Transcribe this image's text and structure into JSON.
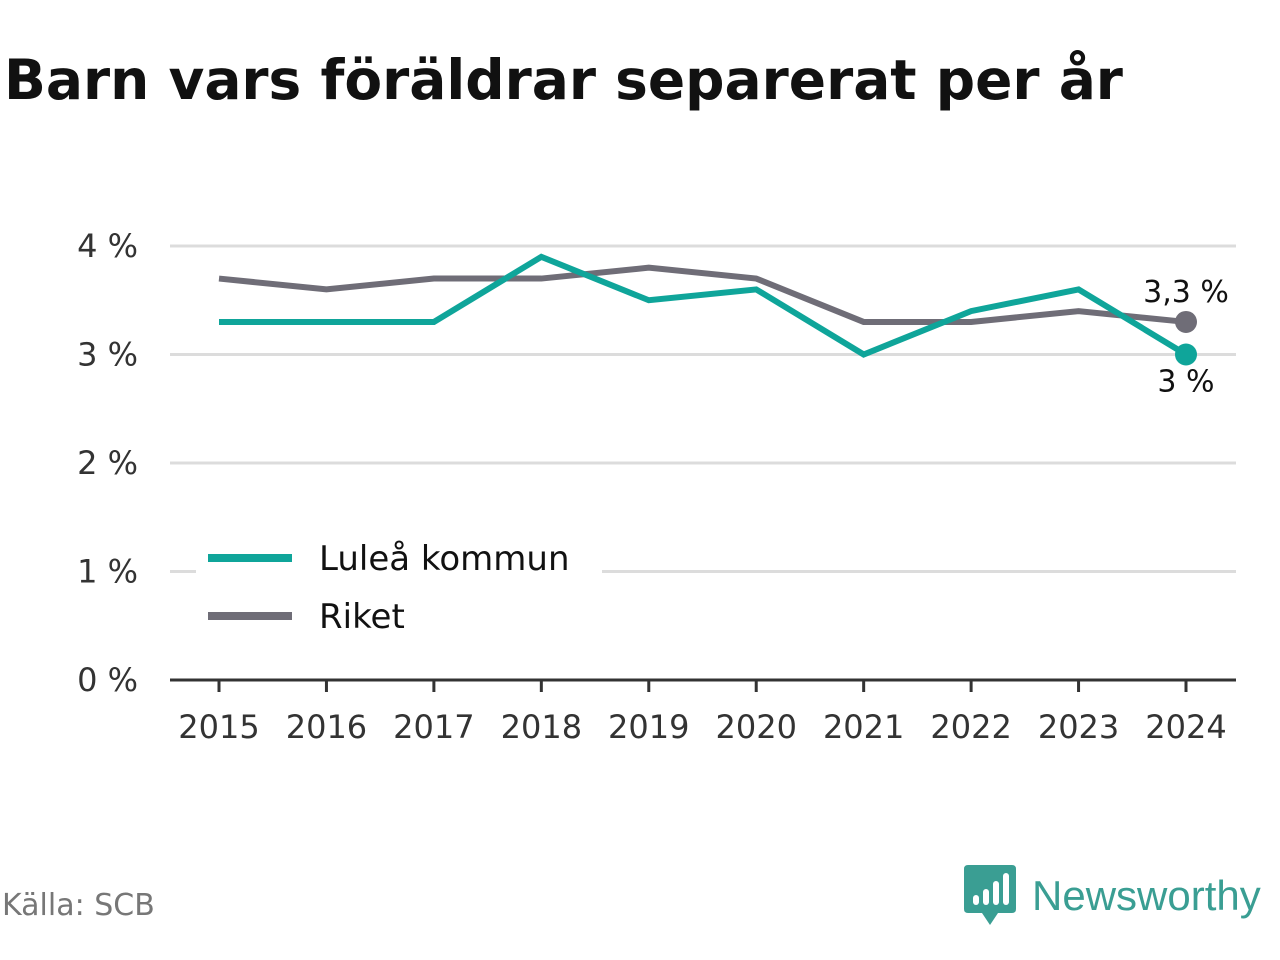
{
  "title": "Barn vars föräldrar separerat per år",
  "source": "Källa: SCB",
  "brand": {
    "name": "Newsworthy",
    "icon": "newsworthy-logo-icon",
    "color": "#3a9e93"
  },
  "chart_data": {
    "type": "line",
    "title": "Barn vars föräldrar separerat per år",
    "xlabel": "",
    "ylabel": "",
    "x": [
      "2015",
      "2016",
      "2017",
      "2018",
      "2019",
      "2020",
      "2021",
      "2022",
      "2023",
      "2024"
    ],
    "ylim": [
      0,
      4
    ],
    "yticks": [
      "0 %",
      "1 %",
      "2 %",
      "3 %",
      "4 %"
    ],
    "grid": true,
    "legend_position": "bottom-left",
    "series": [
      {
        "name": "Luleå kommun",
        "color": "#0fa59a",
        "values": [
          3.3,
          3.3,
          3.3,
          3.9,
          3.5,
          3.6,
          3.0,
          3.4,
          3.6,
          3.0
        ],
        "end_label": "3 %"
      },
      {
        "name": "Riket",
        "color": "#6f6d77",
        "values": [
          3.7,
          3.6,
          3.7,
          3.7,
          3.8,
          3.7,
          3.3,
          3.3,
          3.4,
          3.3
        ],
        "end_label": "3,3 %"
      }
    ]
  }
}
